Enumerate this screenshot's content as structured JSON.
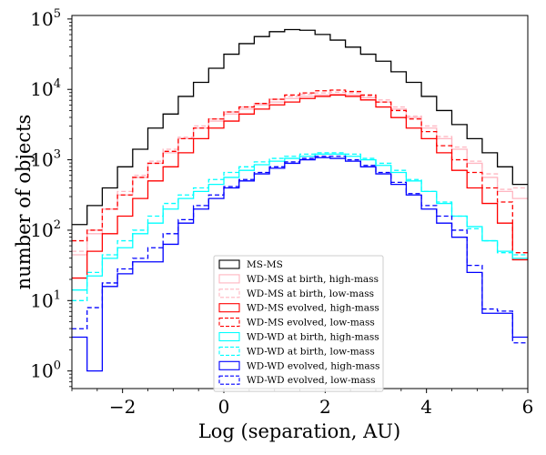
{
  "chart_data": {
    "type": "step-histogram",
    "xlabel": "Log (separation, AU)",
    "ylabel": "number of objects",
    "xlim": [
      -3,
      6
    ],
    "ylim_log10": [
      -0.25,
      5.05
    ],
    "yscale": "log",
    "bin_edges": [
      -3,
      -2.7,
      -2.4,
      -2.1,
      -1.8,
      -1.5,
      -1.2,
      -0.9,
      -0.6,
      -0.3,
      0,
      0.3,
      0.6,
      0.9,
      1.2,
      1.5,
      1.8,
      2.1,
      2.4,
      2.7,
      3,
      3.3,
      3.6,
      3.9,
      4.2,
      4.5,
      4.8,
      5.1,
      5.4,
      5.7,
      6
    ],
    "x_ticks": [
      {
        "value": -2,
        "label": "−2"
      },
      {
        "value": 0,
        "label": "0"
      },
      {
        "value": 2,
        "label": "2"
      },
      {
        "value": 4,
        "label": "4"
      },
      {
        "value": 6,
        "label": "6"
      }
    ],
    "y_ticks": [
      {
        "exp": 0,
        "base": "10",
        "sup": "0"
      },
      {
        "exp": 1,
        "base": "10",
        "sup": "1"
      },
      {
        "exp": 2,
        "base": "10",
        "sup": "2"
      },
      {
        "exp": 3,
        "base": "10",
        "sup": "3"
      },
      {
        "exp": 4,
        "base": "10",
        "sup": "4"
      },
      {
        "exp": 5,
        "base": "10",
        "sup": "5"
      }
    ],
    "legend_position": "lower-center",
    "series": [
      {
        "name": "MS-MS",
        "color": "#000000",
        "dashed": false,
        "log10_values": [
          2.08,
          2.35,
          2.6,
          2.9,
          3.15,
          3.45,
          3.65,
          3.9,
          4.1,
          4.3,
          4.5,
          4.65,
          4.75,
          4.82,
          4.85,
          4.84,
          4.78,
          4.7,
          4.6,
          4.5,
          4.4,
          4.25,
          4.1,
          3.9,
          3.7,
          3.5,
          3.3,
          3.1,
          2.9,
          2.65
        ]
      },
      {
        "name": "WD-MS at birth, high-mass",
        "color": "#ffb6c1",
        "dashed": false,
        "log10_values": [
          1.65,
          1.95,
          2.3,
          2.5,
          2.75,
          2.95,
          3.1,
          3.3,
          3.45,
          3.55,
          3.65,
          3.72,
          3.78,
          3.82,
          3.87,
          3.9,
          3.92,
          3.93,
          3.92,
          3.88,
          3.82,
          3.72,
          3.6,
          3.45,
          3.3,
          3.15,
          2.95,
          2.75,
          2.55,
          2.45
        ]
      },
      {
        "name": "WD-MS at birth, low-mass",
        "color": "#ffb6c1",
        "dashed": true,
        "log10_values": [
          1.7,
          2.0,
          2.3,
          2.55,
          2.78,
          2.98,
          3.15,
          3.32,
          3.48,
          3.58,
          3.68,
          3.75,
          3.8,
          3.86,
          3.9,
          3.93,
          3.95,
          3.96,
          3.95,
          3.9,
          3.85,
          3.75,
          3.62,
          3.48,
          3.33,
          3.18,
          2.98,
          2.8,
          2.58,
          2.6
        ]
      },
      {
        "name": "WD-MS evolved, high-mass",
        "color": "#ff0000",
        "dashed": false,
        "log10_values": [
          1.32,
          1.7,
          1.95,
          2.2,
          2.45,
          2.7,
          2.9,
          3.1,
          3.3,
          3.45,
          3.55,
          3.65,
          3.72,
          3.78,
          3.82,
          3.87,
          3.9,
          3.92,
          3.9,
          3.85,
          3.75,
          3.6,
          3.45,
          3.3,
          3.1,
          2.85,
          2.6,
          2.38,
          2.1,
          1.58
        ]
      },
      {
        "name": "WD-MS evolved, low-mass",
        "color": "#ff0000",
        "dashed": true,
        "log10_values": [
          1.85,
          2.0,
          2.3,
          2.5,
          2.75,
          2.95,
          3.12,
          3.3,
          3.45,
          3.58,
          3.68,
          3.75,
          3.8,
          3.86,
          3.92,
          3.95,
          3.98,
          3.99,
          3.97,
          3.92,
          3.82,
          3.7,
          3.58,
          3.4,
          3.2,
          3.0,
          2.82,
          2.6,
          2.4,
          1.68
        ]
      },
      {
        "name": "WD-WD at birth, high-mass",
        "color": "#00ffff",
        "dashed": false,
        "log10_values": [
          1.15,
          1.35,
          1.6,
          1.75,
          1.95,
          2.1,
          2.3,
          2.45,
          2.55,
          2.65,
          2.75,
          2.85,
          2.93,
          2.98,
          3.02,
          3.05,
          3.08,
          3.08,
          3.05,
          3.0,
          2.92,
          2.82,
          2.7,
          2.55,
          2.38,
          2.2,
          2.05,
          1.85,
          1.7,
          1.6
        ]
      },
      {
        "name": "WD-WD at birth, low-mass",
        "color": "#00ffff",
        "dashed": true,
        "log10_values": [
          1.0,
          1.4,
          1.65,
          1.85,
          2.0,
          2.2,
          2.38,
          2.5,
          2.6,
          2.72,
          2.82,
          2.9,
          2.97,
          3.02,
          3.05,
          3.08,
          3.1,
          3.1,
          3.08,
          3.02,
          2.95,
          2.85,
          2.72,
          2.55,
          2.4,
          2.2,
          2.02,
          1.85,
          1.68,
          1.65
        ]
      },
      {
        "name": "WD-WD evolved, high-mass",
        "color": "#0000ff",
        "dashed": false,
        "log10_values": [
          0.48,
          0.0,
          1.2,
          1.38,
          1.55,
          1.55,
          1.8,
          2.1,
          2.3,
          2.45,
          2.6,
          2.7,
          2.8,
          2.88,
          2.95,
          3.0,
          3.03,
          3.02,
          2.98,
          2.9,
          2.8,
          2.65,
          2.5,
          2.3,
          2.1,
          1.9,
          1.4,
          0.82,
          0.82,
          0.48
        ]
      },
      {
        "name": "WD-WD evolved, low-mass",
        "color": "#0000ff",
        "dashed": true,
        "log10_values": [
          0.6,
          0.9,
          1.25,
          1.45,
          1.6,
          1.75,
          1.95,
          2.15,
          2.35,
          2.5,
          2.62,
          2.72,
          2.82,
          2.9,
          2.97,
          3.02,
          3.05,
          3.05,
          3.0,
          2.92,
          2.82,
          2.68,
          2.52,
          2.35,
          2.2,
          2.0,
          1.5,
          0.88,
          0.85,
          0.4
        ]
      }
    ]
  }
}
